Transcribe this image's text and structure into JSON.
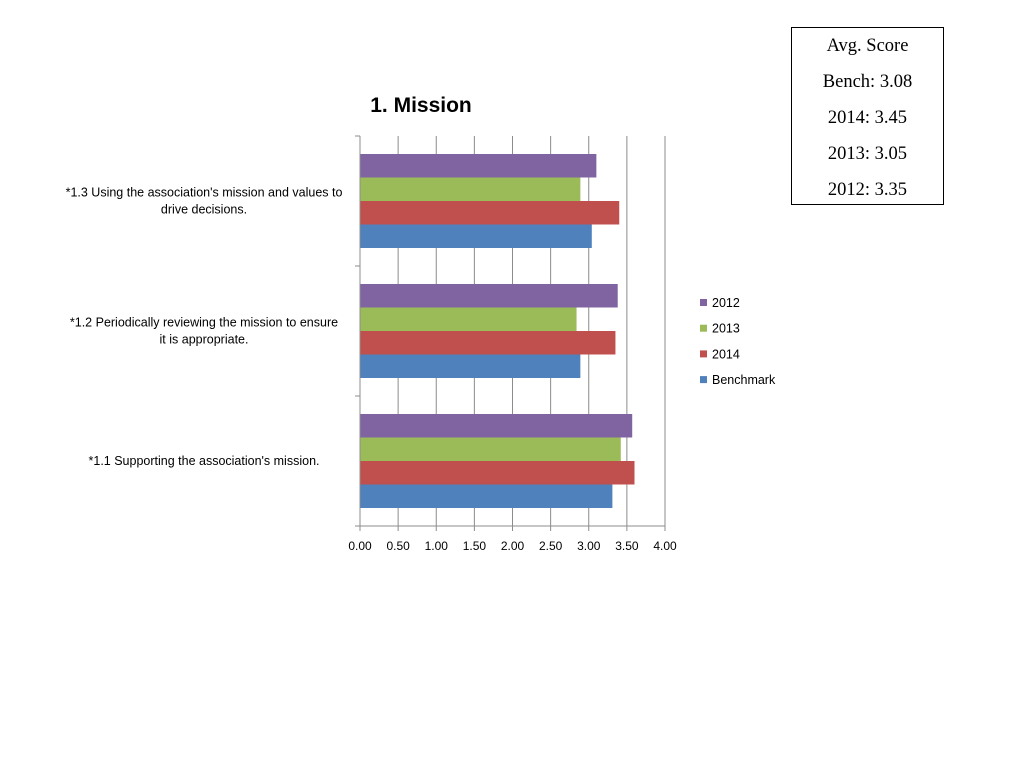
{
  "score_box": {
    "lines": [
      "Avg. Score",
      "Bench: 3.08",
      "2014: 3.45",
      "2013: 3.05",
      "2012: 3.35"
    ]
  },
  "chart_data": {
    "type": "bar",
    "orientation": "horizontal",
    "title": "1. Mission",
    "xlabel": "",
    "ylabel": "",
    "categories": [
      "*1.1 Supporting the association's mission.",
      "*1.2 Periodically reviewing the mission to ensure it is appropriate.",
      "*1.3 Using the association's mission and values to drive decisions."
    ],
    "series": [
      {
        "name": "Benchmark",
        "color": "#4F81BD",
        "values": [
          3.31,
          2.89,
          3.04
        ]
      },
      {
        "name": "2014",
        "color": "#C0504D",
        "values": [
          3.6,
          3.35,
          3.4
        ]
      },
      {
        "name": "2013",
        "color": "#9BBB59",
        "values": [
          3.42,
          2.84,
          2.89
        ]
      },
      {
        "name": "2012",
        "color": "#8064A2",
        "values": [
          3.57,
          3.38,
          3.1
        ]
      }
    ],
    "xlim": [
      0,
      4
    ],
    "x_ticks": [
      "0.00",
      "0.50",
      "1.00",
      "1.50",
      "2.00",
      "2.50",
      "3.00",
      "3.50",
      "4.00"
    ],
    "grid": true,
    "legend_position": "right",
    "legend_order": [
      "2012",
      "2013",
      "2014",
      "Benchmark"
    ]
  }
}
